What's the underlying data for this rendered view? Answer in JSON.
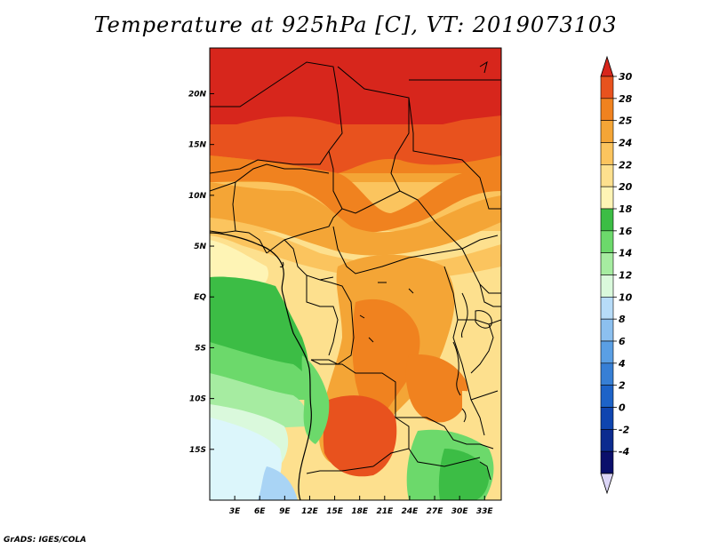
{
  "map": {
    "title": "Temperature at 925hPa [C], VT: 2019073103",
    "credit": "GrADS: IGES/COLA",
    "lon_labels": [
      "3E",
      "6E",
      "9E",
      "12E",
      "15E",
      "18E",
      "21E",
      "24E",
      "27E",
      "30E",
      "33E"
    ],
    "lat_labels": [
      "20N",
      "15N",
      "10N",
      "5N",
      "EQ",
      "5S",
      "10S",
      "15S"
    ],
    "lon_range": [
      0,
      35
    ],
    "lat_range": [
      -20,
      24.5
    ],
    "colors": {
      "c30": "#d7261c",
      "c28": "#e8521e",
      "c25": "#f0821f",
      "c24": "#f4a536",
      "c22": "#fbc45e",
      "c20": "#fde08e",
      "c18": "#fef4b5",
      "c16": "#3cbd45",
      "c14": "#6cd96b",
      "c12": "#a6eca1",
      "c10": "#daf9dc",
      "c8": "#dcf6fb",
      "sea": "#a9d4f5"
    }
  },
  "colorbar": {
    "labels": [
      "30",
      "28",
      "25",
      "24",
      "22",
      "20",
      "18",
      "16",
      "14",
      "12",
      "10",
      "8",
      "6",
      "4",
      "2",
      "0",
      "-2",
      "-4"
    ],
    "colors": [
      "#e8521e",
      "#f0821f",
      "#f4a536",
      "#fbc45e",
      "#fde08e",
      "#fef4b5",
      "#3cbd45",
      "#6cd96b",
      "#a6eca1",
      "#daf9dc",
      "#b7dcf8",
      "#8cc0ef",
      "#5a9fe4",
      "#377fd5",
      "#1d63c8",
      "#0f45b0",
      "#0c2b8f",
      "#0a0f6b"
    ],
    "top_arrow_color": "#d7261c",
    "bottom_arrow_color": "#dcd6f7"
  }
}
